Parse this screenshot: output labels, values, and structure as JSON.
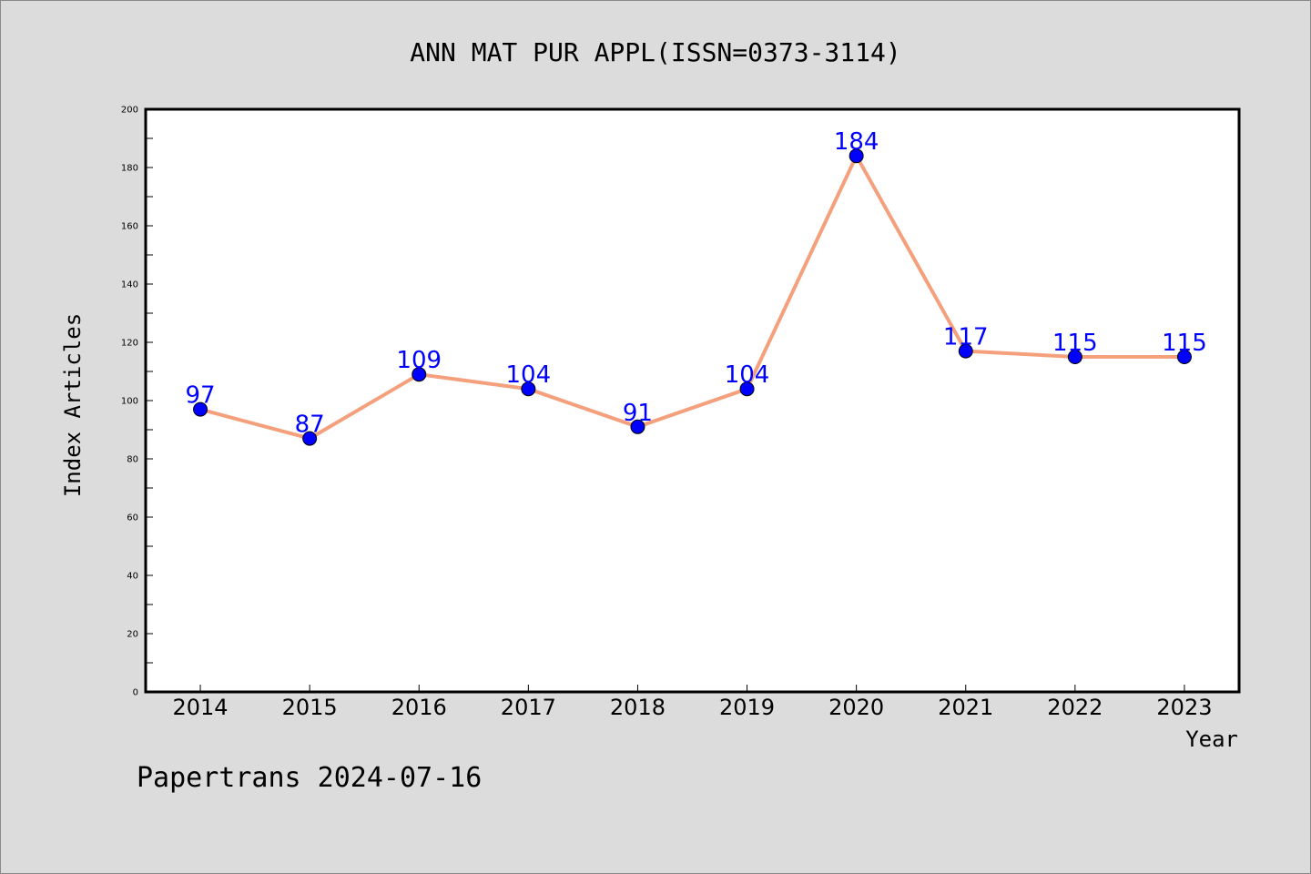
{
  "chart_data": {
    "type": "line",
    "title": "ANN MAT PUR APPL(ISSN=0373-3114)",
    "xlabel": "Year",
    "ylabel": "Index Articles",
    "categories": [
      "2014",
      "2015",
      "2016",
      "2017",
      "2018",
      "2019",
      "2020",
      "2021",
      "2022",
      "2023"
    ],
    "series": [
      {
        "values": [
          97,
          87,
          109,
          104,
          91,
          104,
          184,
          117,
          115,
          115
        ]
      }
    ],
    "ylim": [
      0,
      200
    ],
    "yticks": [
      0,
      20,
      40,
      60,
      80,
      100,
      120,
      140,
      160,
      180,
      200
    ],
    "grid": false,
    "colors": {
      "line": "#f4a07c",
      "marker": "#0000ff",
      "label": "#0000ff"
    }
  },
  "footer": {
    "watermark": "Papertrans 2024-07-16"
  }
}
